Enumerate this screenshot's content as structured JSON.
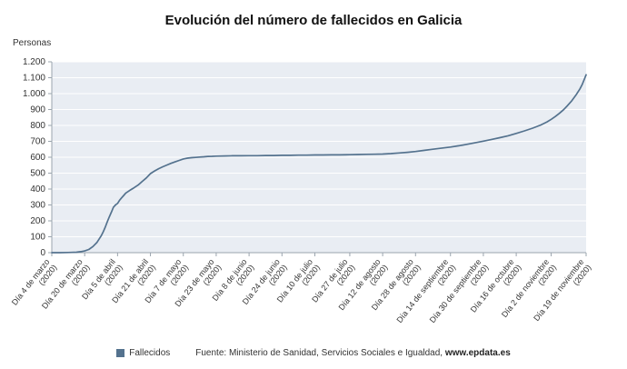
{
  "title": "Evolución del número de fallecidos en Galicia",
  "y_axis_title": "Personas",
  "legend": {
    "label": "Fallecidos",
    "color": "#54728e"
  },
  "source": {
    "prefix": "Fuente: Ministerio de Sanidad, Servicios Sociales e Igualdad, ",
    "site": "www.epdata.es"
  },
  "chart_data": {
    "type": "line",
    "title": "Evolución del número de fallecidos en Galicia",
    "xlabel": "",
    "ylabel": "Personas",
    "ylim": [
      0,
      1200
    ],
    "ytick_step": 100,
    "ytick_labels": [
      "0",
      "100",
      "200",
      "300",
      "400",
      "500",
      "600",
      "700",
      "800",
      "900",
      "1.000",
      "1.100",
      "1.200"
    ],
    "grid": true,
    "legend_position": "bottom",
    "plot_bg": "#e9edf3",
    "grid_color": "#ffffff",
    "axis_color": "#9aa4ad",
    "tick_text_color": "#333333",
    "total_days": 260,
    "x_ticks": [
      {
        "day": 0,
        "date": "Día 4 de marzo",
        "year": "(2020)"
      },
      {
        "day": 16,
        "date": "Día 20 de marzo",
        "year": "(2020)"
      },
      {
        "day": 32,
        "date": "Día 5 de abril",
        "year": "(2020)"
      },
      {
        "day": 48,
        "date": "Día 21 de abril",
        "year": "(2020)"
      },
      {
        "day": 64,
        "date": "Día 7 de mayo",
        "year": "(2020)"
      },
      {
        "day": 80,
        "date": "Día 23 de mayo",
        "year": "(2020)"
      },
      {
        "day": 96,
        "date": "Día 8 de junio",
        "year": "(2020)"
      },
      {
        "day": 112,
        "date": "Día 24 de junio",
        "year": "(2020)"
      },
      {
        "day": 128,
        "date": "Día 10 de julio",
        "year": "(2020)"
      },
      {
        "day": 145,
        "date": "Día 27 de julio",
        "year": "(2020)"
      },
      {
        "day": 161,
        "date": "Día 12 de agosto",
        "year": "(2020)"
      },
      {
        "day": 177,
        "date": "Día 28 de agosto",
        "year": "(2020)"
      },
      {
        "day": 194,
        "date": "Día 14 de septiembre",
        "year": "(2020)"
      },
      {
        "day": 210,
        "date": "Día 30 de septiembre",
        "year": "(2020)"
      },
      {
        "day": 226,
        "date": "Día 16 de octubre",
        "year": "(2020)"
      },
      {
        "day": 243,
        "date": "Día 2 de noviembre",
        "year": "(2020)"
      },
      {
        "day": 260,
        "date": "Día 19 de noviembre",
        "year": "(2020)"
      }
    ],
    "series": [
      {
        "name": "Fallecidos",
        "color": "#54728e",
        "points": [
          [
            0,
            0
          ],
          [
            4,
            0
          ],
          [
            8,
            1
          ],
          [
            12,
            3
          ],
          [
            14,
            6
          ],
          [
            16,
            11
          ],
          [
            18,
            20
          ],
          [
            20,
            38
          ],
          [
            22,
            65
          ],
          [
            24,
            105
          ],
          [
            25,
            130
          ],
          [
            26,
            160
          ],
          [
            27,
            195
          ],
          [
            28,
            225
          ],
          [
            29,
            255
          ],
          [
            30,
            285
          ],
          [
            31,
            300
          ],
          [
            32,
            310
          ],
          [
            33,
            330
          ],
          [
            34,
            345
          ],
          [
            35,
            360
          ],
          [
            36,
            375
          ],
          [
            38,
            392
          ],
          [
            40,
            408
          ],
          [
            42,
            425
          ],
          [
            44,
            448
          ],
          [
            46,
            470
          ],
          [
            48,
            497
          ],
          [
            50,
            514
          ],
          [
            52,
            528
          ],
          [
            54,
            540
          ],
          [
            56,
            551
          ],
          [
            58,
            562
          ],
          [
            60,
            571
          ],
          [
            62,
            580
          ],
          [
            64,
            589
          ],
          [
            66,
            594
          ],
          [
            68,
            597
          ],
          [
            70,
            599
          ],
          [
            72,
            601
          ],
          [
            74,
            603
          ],
          [
            76,
            605
          ],
          [
            78,
            606
          ],
          [
            80,
            607
          ],
          [
            84,
            608
          ],
          [
            88,
            609
          ],
          [
            92,
            609
          ],
          [
            96,
            610
          ],
          [
            100,
            610
          ],
          [
            104,
            611
          ],
          [
            108,
            611
          ],
          [
            112,
            612
          ],
          [
            116,
            612
          ],
          [
            120,
            613
          ],
          [
            124,
            613
          ],
          [
            128,
            614
          ],
          [
            132,
            614
          ],
          [
            136,
            615
          ],
          [
            140,
            615
          ],
          [
            145,
            616
          ],
          [
            149,
            617
          ],
          [
            153,
            618
          ],
          [
            157,
            619
          ],
          [
            161,
            620
          ],
          [
            165,
            623
          ],
          [
            169,
            627
          ],
          [
            173,
            631
          ],
          [
            177,
            636
          ],
          [
            181,
            643
          ],
          [
            185,
            650
          ],
          [
            189,
            656
          ],
          [
            194,
            664
          ],
          [
            198,
            672
          ],
          [
            202,
            681
          ],
          [
            206,
            691
          ],
          [
            210,
            701
          ],
          [
            214,
            712
          ],
          [
            218,
            723
          ],
          [
            222,
            735
          ],
          [
            226,
            750
          ],
          [
            230,
            766
          ],
          [
            234,
            783
          ],
          [
            238,
            803
          ],
          [
            241,
            822
          ],
          [
            243,
            838
          ],
          [
            245,
            856
          ],
          [
            247,
            876
          ],
          [
            249,
            898
          ],
          [
            251,
            925
          ],
          [
            253,
            955
          ],
          [
            255,
            990
          ],
          [
            257,
            1030
          ],
          [
            258,
            1055
          ],
          [
            259,
            1085
          ],
          [
            260,
            1118
          ]
        ]
      }
    ]
  }
}
